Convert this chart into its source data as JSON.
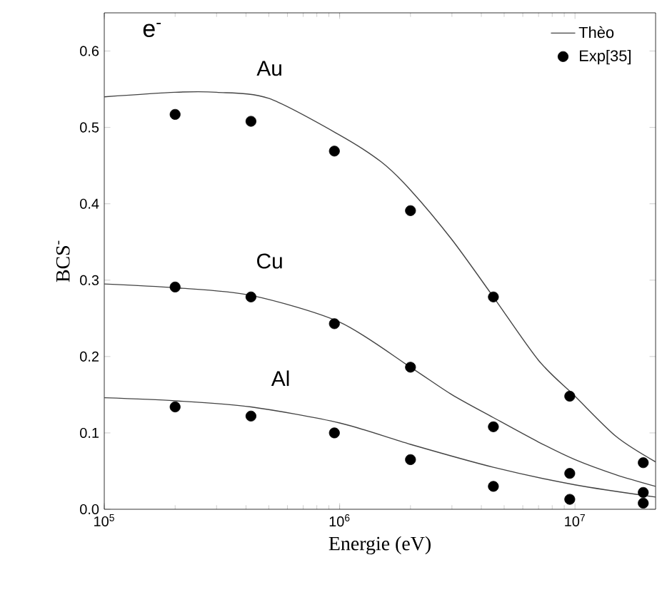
{
  "chart_data": {
    "type": "scatter",
    "xlabel": "Energie (eV)",
    "ylabel": "BCS$^{-}$",
    "log": "x",
    "legend": "top right",
    "xlim": [
      100000,
      22000000
    ],
    "ylim": [
      0,
      0.65
    ],
    "xticks": [
      {
        "value": 100000,
        "label": "10$^{5}$"
      },
      {
        "value": 1000000,
        "label": "10$^{6}$"
      },
      {
        "value": 10000000,
        "label": "10$^{7}$"
      }
    ],
    "yticks": [
      {
        "value": 0,
        "label": "0.0"
      },
      {
        "value": 0.1,
        "label": "0.1"
      },
      {
        "value": 0.2,
        "label": "0.2"
      },
      {
        "value": 0.3,
        "label": "0.3"
      },
      {
        "value": 0.4,
        "label": "0.4"
      },
      {
        "value": 0.5,
        "label": "0.5"
      },
      {
        "value": 0.6,
        "label": "0.6"
      }
    ],
    "annotations": [
      "e$^{-}$",
      "Au",
      "Cu",
      "Al"
    ],
    "series": [
      {
        "name": "Thèo",
        "type": "line",
        "color": "#444444",
        "line_style": "solid",
        "marker": "none",
        "x": [
          100000,
          200000,
          300000,
          500000,
          1000000,
          1500000,
          2000000,
          3000000,
          4500000,
          7000000,
          10000000,
          15000000,
          22000000
        ],
        "values": [
          0.54,
          0.546,
          0.546,
          0.538,
          0.49,
          0.455,
          0.418,
          0.353,
          0.278,
          0.195,
          0.148,
          0.095,
          0.062
        ]
      },
      {
        "type": "line",
        "color": "#444444",
        "line_style": "solid",
        "marker": "none",
        "x": [
          100000,
          200000,
          420000,
          1000000,
          2000000,
          3000000,
          4500000,
          7000000,
          10000000,
          15000000,
          22000000
        ],
        "values": [
          0.295,
          0.29,
          0.28,
          0.245,
          0.186,
          0.15,
          0.12,
          0.088,
          0.065,
          0.045,
          0.03
        ]
      },
      {
        "type": "line",
        "color": "#444444",
        "line_style": "solid",
        "marker": "none",
        "x": [
          100000,
          200000,
          420000,
          1000000,
          2000000,
          4500000,
          10000000,
          22000000
        ],
        "values": [
          0.146,
          0.142,
          0.134,
          0.113,
          0.085,
          0.055,
          0.032,
          0.016
        ]
      },
      {
        "name": "Exp[35]",
        "color": "#000000",
        "marker": "circle",
        "x": [
          200000,
          420000,
          950000,
          2000000,
          4500000,
          9500000,
          19500000
        ],
        "values": [
          0.517,
          0.508,
          0.469,
          0.391,
          0.278,
          0.148,
          0.061
        ]
      },
      {
        "color": "#000000",
        "marker": "circle",
        "x": [
          200000,
          420000,
          950000,
          2000000,
          4500000,
          9500000,
          19500000
        ],
        "values": [
          0.291,
          0.278,
          0.243,
          0.186,
          0.108,
          0.047,
          0.022
        ]
      },
      {
        "color": "#000000",
        "marker": "circle",
        "x": [
          200000,
          420000,
          950000,
          2000000,
          4500000,
          9500000,
          19500000
        ],
        "values": [
          0.134,
          0.122,
          0.1,
          0.065,
          0.03,
          0.013,
          0.008
        ]
      }
    ]
  }
}
